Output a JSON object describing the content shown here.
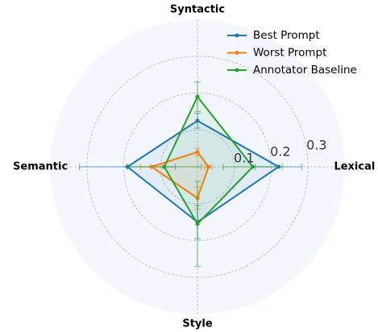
{
  "chart_data": {
    "type": "radar",
    "categories": [
      "Lexical",
      "Syntactic",
      "Semantic",
      "Style"
    ],
    "series": [
      {
        "name": "Best Prompt",
        "color": "#1f77b4",
        "values": [
          0.22,
          0.125,
          0.19,
          0.15
        ],
        "errors": [
          0.063,
          0.02,
          0.13,
          0.045
        ]
      },
      {
        "name": "Worst Prompt",
        "color": "#ff7f0e",
        "values": [
          0.03,
          0.04,
          0.125,
          0.085
        ],
        "errors": [
          0.01,
          0.01,
          0.03,
          0.03
        ]
      },
      {
        "name": "Annotator Baseline",
        "color": "#2ca02c",
        "values": [
          0.15,
          0.19,
          0.09,
          0.155
        ],
        "errors": [
          0.08,
          0.04,
          0.1,
          0.115
        ]
      }
    ],
    "ylim": [
      0,
      0.4
    ],
    "yticks": [
      0.1,
      0.2,
      0.3
    ],
    "grid": true,
    "legend": "upper right"
  }
}
